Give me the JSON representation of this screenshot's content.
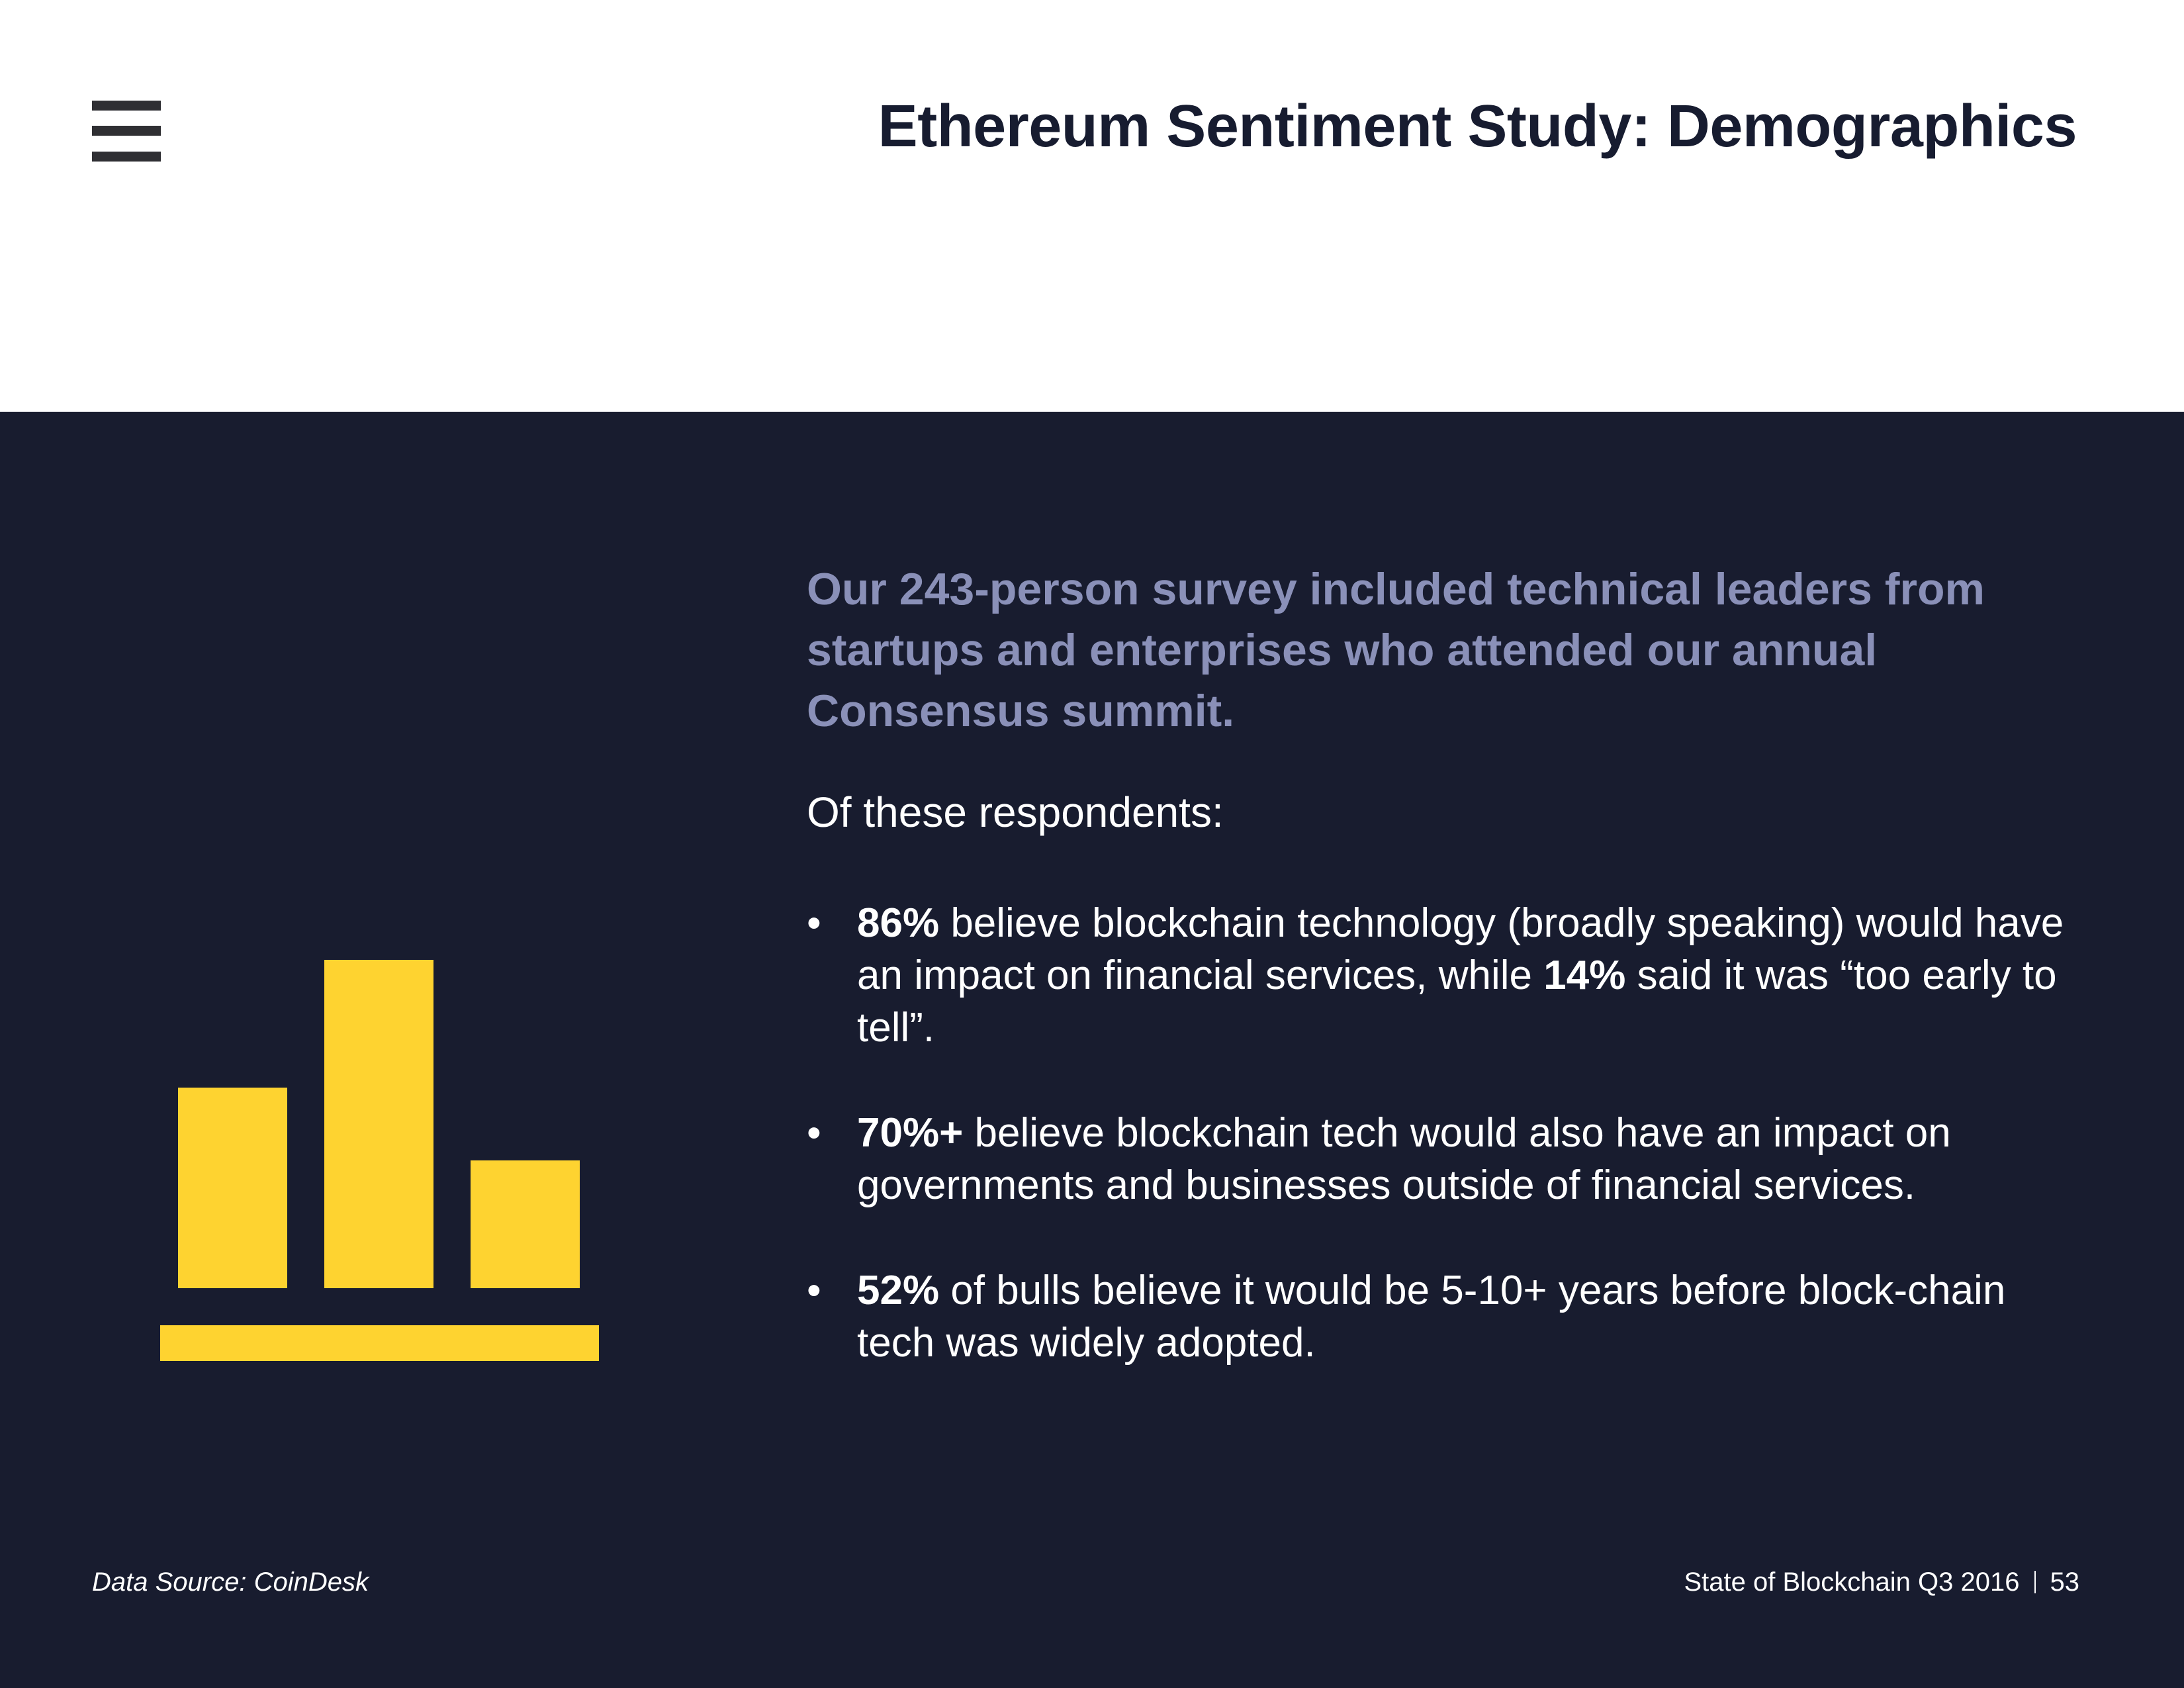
{
  "header": {
    "title": "Ethereum Sentiment Study: Demographics"
  },
  "main": {
    "lead": "Our 243-person survey included technical leaders from startups and enterprises who attended our annual Consensus summit.",
    "intro": "Of these respondents:",
    "bullets": [
      {
        "stat": "86%",
        "text_a": " believe blockchain technology (broadly speaking) would have an impact on financial services, while ",
        "stat_b": "14%",
        "text_b": " said it was “too early to tell”."
      },
      {
        "stat": "70%+",
        "text_a": " believe blockchain tech would also have an impact on governments and businesses outside of financial services."
      },
      {
        "stat": "52%",
        "text_a": " of bulls believe it would be 5-10+ years before block-chain tech was widely adopted."
      }
    ]
  },
  "footer": {
    "source": "Data Source: CoinDesk",
    "report": "State of Blockchain Q3 2016",
    "page_number": "53"
  },
  "colors": {
    "panel_bg": "#181c2f",
    "accent_yellow": "#fed330",
    "lead_text": "#8a90b8",
    "title_text": "#171c30"
  }
}
